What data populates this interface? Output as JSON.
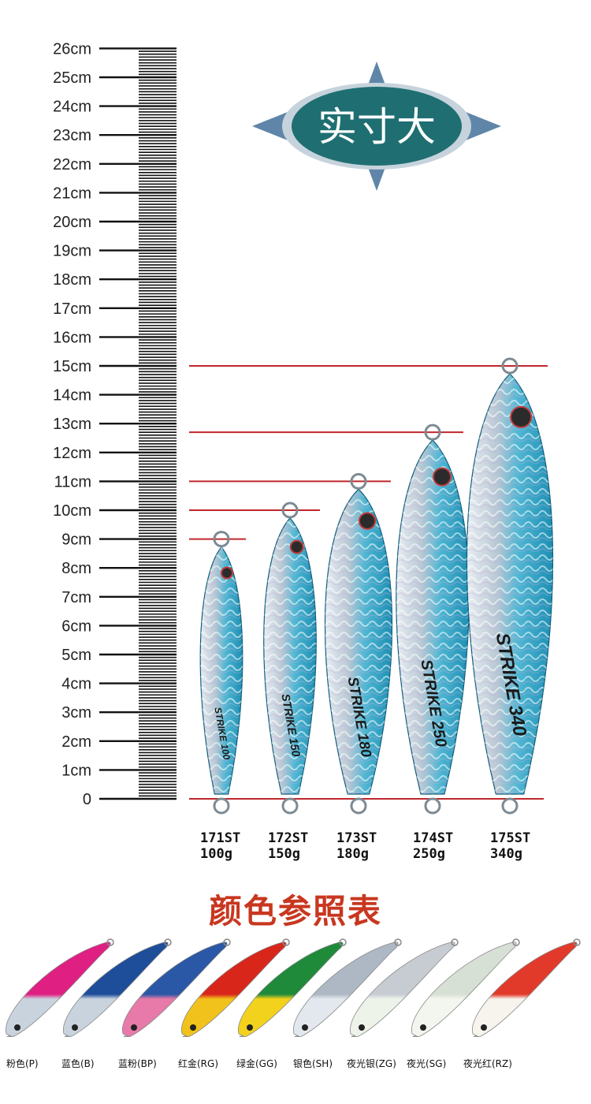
{
  "badge": {
    "text": "实寸大"
  },
  "ruler": {
    "labels": [
      "0",
      "1cm",
      "2cm",
      "3cm",
      "4cm",
      "5cm",
      "6cm",
      "7cm",
      "8cm",
      "9cm",
      "10cm",
      "11cm",
      "12cm",
      "13cm",
      "14cm",
      "15cm",
      "16cm",
      "17cm",
      "18cm",
      "19cm",
      "20cm",
      "21cm",
      "22cm",
      "23cm",
      "24cm",
      "25cm",
      "26cm"
    ]
  },
  "colors": {
    "guide_line": "#c0272d",
    "badge_fill": "#1f6f72",
    "badge_wing": "#5f86a8",
    "title": "#c8371f"
  },
  "products": [
    {
      "code": "171ST",
      "weight": "100g",
      "lure_text": "STRIKE 100",
      "length_cm": 9.0
    },
    {
      "code": "172ST",
      "weight": "150g",
      "lure_text": "STRIKE 150",
      "length_cm": 10.0
    },
    {
      "code": "173ST",
      "weight": "180g",
      "lure_text": "STRIKE 180",
      "length_cm": 11.0
    },
    {
      "code": "174ST",
      "weight": "250g",
      "lure_text": "STRIKE 250",
      "length_cm": 12.7
    },
    {
      "code": "175ST",
      "weight": "340g",
      "lure_text": "STRIKE 340",
      "length_cm": 15.0
    }
  ],
  "color_chart": {
    "title": "颜色参照表",
    "items": [
      {
        "label": "粉色(P)",
        "top": "#e01f83",
        "bottom": "#c9d3de"
      },
      {
        "label": "蓝色(B)",
        "top": "#1e4e9a",
        "bottom": "#c9d3de"
      },
      {
        "label": "蓝粉(BP)",
        "top": "#2a57a6",
        "bottom": "#e77aa9"
      },
      {
        "label": "红金(RG)",
        "top": "#d8261b",
        "bottom": "#f1c21b"
      },
      {
        "label": "绿金(GG)",
        "top": "#1f8a3a",
        "bottom": "#f2d21d"
      },
      {
        "label": "银色(SH)",
        "top": "#aeb8c4",
        "bottom": "#e3e8ee"
      },
      {
        "label": "夜光银(ZG)",
        "top": "#c7ccd3",
        "bottom": "#eef3ea"
      },
      {
        "label": "夜光(SG)",
        "top": "#d7e0d4",
        "bottom": "#f3f6ee"
      },
      {
        "label": "夜光红(RZ)",
        "top": "#e23a2a",
        "bottom": "#f7f4ee"
      }
    ]
  }
}
